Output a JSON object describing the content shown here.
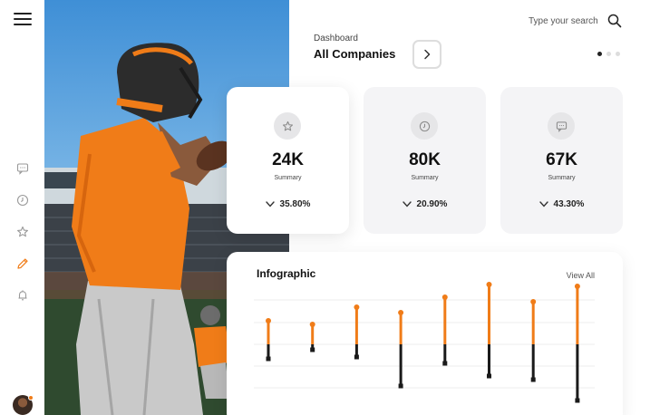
{
  "header": {
    "search_placeholder": "Type your search",
    "breadcrumb": "Dashboard",
    "title": "All Companies"
  },
  "sidebar": {
    "icons": [
      "chat-icon",
      "clock-icon",
      "star-icon",
      "pencil-icon",
      "bell-icon"
    ],
    "active_index": 3
  },
  "pager": {
    "count": 3,
    "active": 0
  },
  "cards": [
    {
      "icon": "star-icon",
      "value": "24K",
      "label": "Summary",
      "change": "35.80%"
    },
    {
      "icon": "clock-icon",
      "value": "80K",
      "label": "Summary",
      "change": "20.90%"
    },
    {
      "icon": "chat-icon",
      "value": "67K",
      "label": "Summary",
      "change": "43.30%"
    }
  ],
  "infographic": {
    "title": "Infographic",
    "view_all": "View All"
  },
  "chart_data": {
    "type": "bar",
    "title": "Infographic",
    "grid": true,
    "ylim": [
      0,
      100
    ],
    "baseline": 50,
    "series": [
      {
        "color": "#f07c18",
        "values": [
          26,
          22,
          41,
          35,
          52,
          66,
          47,
          64
        ]
      },
      {
        "color": "#1a1a1a",
        "values": [
          16,
          6,
          14,
          46,
          21,
          35,
          39,
          62
        ]
      }
    ],
    "colors": {
      "accent": "#f07c18",
      "dark": "#1a1a1a"
    }
  }
}
